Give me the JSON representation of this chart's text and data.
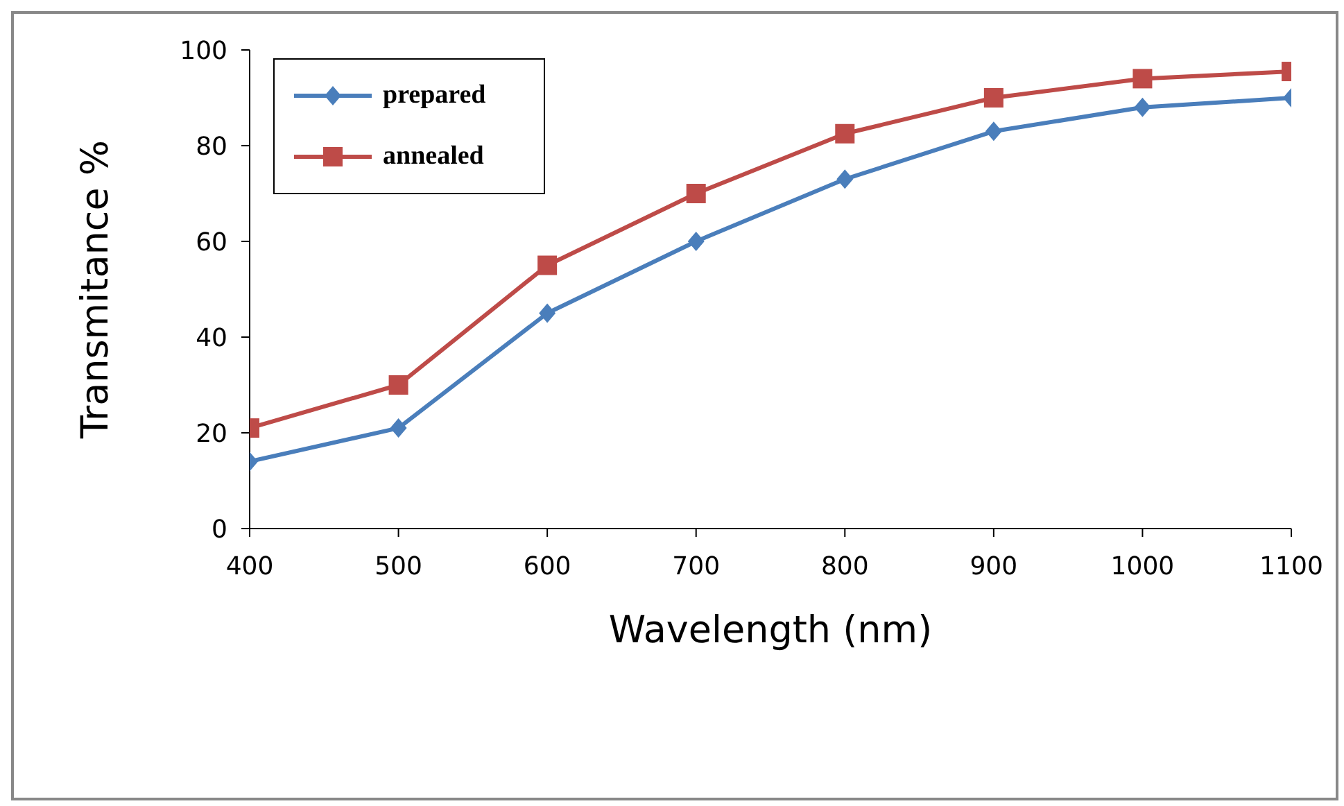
{
  "chart_data": {
    "type": "line",
    "xlabel": "Wavelength (nm)",
    "ylabel": "Transmitance %",
    "x": [
      400,
      500,
      600,
      700,
      800,
      900,
      1000,
      1100
    ],
    "series": [
      {
        "name": "prepared",
        "color": "#4a7ebb",
        "marker": "diamond",
        "values": [
          14,
          21,
          45,
          60,
          73,
          83,
          88,
          90
        ]
      },
      {
        "name": "annealed",
        "color": "#be4b48",
        "marker": "square",
        "values": [
          21,
          30,
          55,
          70,
          82.5,
          90,
          94,
          95.5
        ]
      }
    ],
    "xlim": [
      400,
      1100
    ],
    "xticks": [
      400,
      500,
      600,
      700,
      800,
      900,
      1000,
      1100
    ],
    "ylim": [
      0,
      100
    ],
    "yticks": [
      0,
      20,
      40,
      60,
      80,
      100
    ],
    "grid": false,
    "legend": "top left",
    "line_style": "solid"
  }
}
